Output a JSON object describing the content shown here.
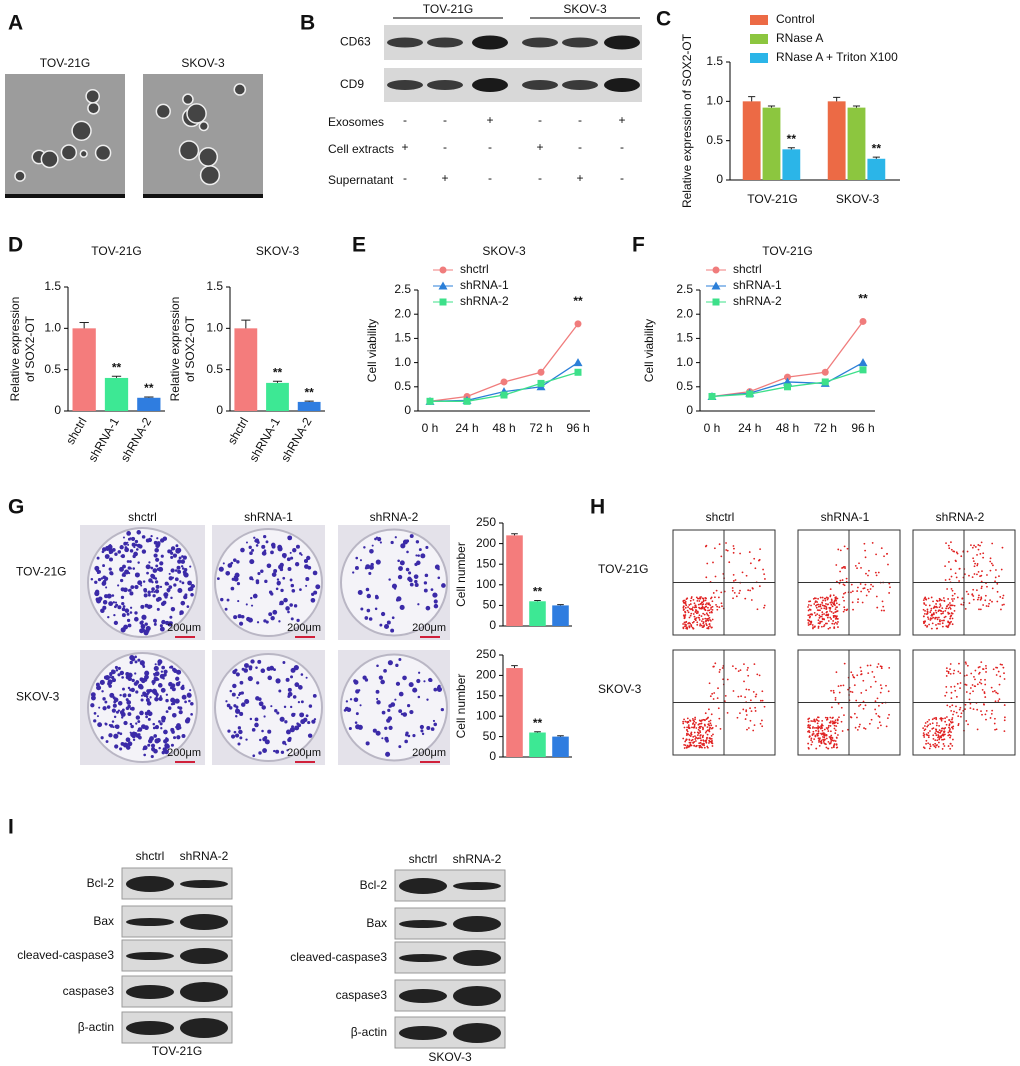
{
  "panel_labels": [
    "A",
    "B",
    "C",
    "D",
    "E",
    "F",
    "G",
    "H",
    "I"
  ],
  "panel_a": {
    "labels": [
      "TOV-21G",
      "SKOV-3"
    ]
  },
  "panel_b": {
    "groups": [
      "TOV-21G",
      "SKOV-3"
    ],
    "rows": [
      "CD63",
      "CD9"
    ],
    "conditions": [
      {
        "name": "Exosomes",
        "marks": [
          "-",
          "-",
          "+",
          "-",
          "-",
          "+"
        ]
      },
      {
        "name": "Cell extracts",
        "marks": [
          "+",
          "-",
          "-",
          "+",
          "-",
          "-"
        ]
      },
      {
        "name": "Supernatant",
        "marks": [
          "-",
          "+",
          "-",
          "-",
          "+",
          "-"
        ]
      }
    ]
  },
  "chart_data": [
    {
      "type": "bar",
      "ylabel": "Relative expression of SOX2-OT",
      "categories": [
        "TOV-21G",
        "SKOV-3"
      ],
      "series": [
        {
          "name": "Control",
          "color": "#ec6a45",
          "values": [
            1.0,
            1.0
          ],
          "errors": [
            0.06,
            0.05
          ]
        },
        {
          "name": "RNase A",
          "color": "#8cc63f",
          "values": [
            0.92,
            0.92
          ],
          "errors": [
            0.02,
            0.02
          ]
        },
        {
          "name": "RNase A + Triton X100",
          "color": "#2bb5e8",
          "values": [
            0.39,
            0.27
          ],
          "errors": [
            0.02,
            0.02
          ],
          "significance": [
            "**",
            "**"
          ]
        }
      ],
      "ylim": [
        0,
        1.5
      ],
      "yticks": [
        0,
        0.5,
        {
          "value": 1,
          "label": "1.0"
        },
        1.5
      ]
    },
    {
      "type": "bar",
      "title": "TOV-21G",
      "ylabel": [
        "Relative expression",
        "of SOX2-OT"
      ],
      "categories": [
        "shctrl",
        "shRNA-1",
        "shRNA-2"
      ],
      "values": [
        1.0,
        0.4,
        0.16
      ],
      "errors": [
        0.07,
        0.02,
        0.01
      ],
      "colors": [
        "#f47c7c",
        "#3de894",
        "#2f7de0"
      ],
      "significance": [
        null,
        "**",
        "**"
      ],
      "ylim": [
        0,
        1.5
      ],
      "yticks": [
        0,
        0.5,
        {
          "value": 1,
          "label": "1.0"
        },
        1.5
      ]
    },
    {
      "type": "bar",
      "title": "SKOV-3",
      "ylabel": [
        "Relative expression",
        "of SOX2-OT"
      ],
      "categories": [
        "shctrl",
        "shRNA-1",
        "shRNA-2"
      ],
      "values": [
        1.0,
        0.34,
        0.11
      ],
      "errors": [
        0.1,
        0.02,
        0.01
      ],
      "colors": [
        "#f47c7c",
        "#3de894",
        "#2f7de0"
      ],
      "significance": [
        null,
        "**",
        "**"
      ],
      "ylim": [
        0,
        1.5
      ],
      "yticks": [
        0,
        0.5,
        {
          "value": 1,
          "label": "1.0"
        },
        1.5
      ]
    },
    {
      "type": "line",
      "title": "SKOV-3",
      "ylabel": "Cell viability",
      "categories": [
        "0 h",
        "24 h",
        "48 h",
        "72 h",
        "96 h"
      ],
      "series": [
        {
          "name": "shctrl",
          "color": "#f07c7c",
          "marker": "circle",
          "values": [
            0.2,
            0.3,
            0.6,
            0.8,
            1.8
          ],
          "significance": [
            null,
            null,
            null,
            null,
            "**"
          ]
        },
        {
          "name": "shRNA-1",
          "color": "#2b7fd8",
          "marker": "triangle",
          "values": [
            0.2,
            0.22,
            0.4,
            0.5,
            1.0
          ]
        },
        {
          "name": "shRNA-2",
          "color": "#3de08a",
          "marker": "square",
          "values": [
            0.2,
            0.2,
            0.33,
            0.57,
            0.8
          ]
        }
      ],
      "ylim": [
        0,
        2.5
      ],
      "yticks": [
        0,
        0.5,
        {
          "value": 1,
          "label": "1.0"
        },
        1.5,
        {
          "value": 2,
          "label": "2.0"
        },
        2.5
      ]
    },
    {
      "type": "line",
      "title": "TOV-21G",
      "ylabel": "Cell viability",
      "categories": [
        "0 h",
        "24 h",
        "48 h",
        "72 h",
        "96 h"
      ],
      "series": [
        {
          "name": "shctrl",
          "color": "#f07c7c",
          "marker": "circle",
          "values": [
            0.3,
            0.4,
            0.7,
            0.8,
            1.85
          ],
          "significance": [
            null,
            null,
            null,
            null,
            "**"
          ]
        },
        {
          "name": "shRNA-1",
          "color": "#2b7fd8",
          "marker": "triangle",
          "values": [
            0.3,
            0.37,
            0.6,
            0.57,
            1.0
          ]
        },
        {
          "name": "shRNA-2",
          "color": "#3de08a",
          "marker": "square",
          "values": [
            0.3,
            0.35,
            0.5,
            0.6,
            0.85
          ]
        }
      ],
      "ylim": [
        0,
        2.5
      ],
      "yticks": [
        0,
        0.5,
        {
          "value": 1,
          "label": "1.0"
        },
        1.5,
        {
          "value": 2,
          "label": "2.0"
        },
        2.5
      ]
    },
    {
      "type": "bar",
      "ylabel": "Cell number",
      "values": [
        220,
        60,
        50
      ],
      "errors": [
        4,
        2,
        2
      ],
      "colors": [
        "#f47c7c",
        "#3de894",
        "#2f7de0"
      ],
      "significance": [
        null,
        "**",
        null
      ],
      "ylim": [
        0,
        250
      ],
      "yticks": [
        0,
        50,
        100,
        150,
        200,
        250
      ]
    },
    {
      "type": "bar",
      "ylabel": "Cell number",
      "values": [
        218,
        60,
        50
      ],
      "errors": [
        6,
        2,
        2
      ],
      "colors": [
        "#f47c7c",
        "#3de894",
        "#2f7de0"
      ],
      "significance": [
        null,
        "**",
        null
      ],
      "ylim": [
        0,
        250
      ],
      "yticks": [
        0,
        50,
        100,
        150,
        200,
        250
      ]
    }
  ],
  "panel_g": {
    "columns": [
      "shctrl",
      "shRNA-1",
      "shRNA-2"
    ],
    "rows": [
      "TOV-21G",
      "SKOV-3"
    ],
    "scale": "200μm"
  },
  "panel_h": {
    "columns": [
      "shctrl",
      "shRNA-1",
      "shRNA-2"
    ],
    "rows": [
      "TOV-21G",
      "SKOV-3"
    ]
  },
  "panel_i": {
    "left": {
      "columns": [
        "shctrl",
        "shRNA-2"
      ],
      "rows": [
        "Bcl-2",
        "Bax",
        "cleaved-caspase3",
        "caspase3",
        "β-actin"
      ],
      "caption": "TOV-21G"
    },
    "right": {
      "columns": [
        "shctrl",
        "shRNA-2"
      ],
      "rows": [
        "Bcl-2",
        "Bax",
        "cleaved-caspase3",
        "caspase3",
        "β-actin"
      ],
      "caption": "SKOV-3"
    }
  }
}
